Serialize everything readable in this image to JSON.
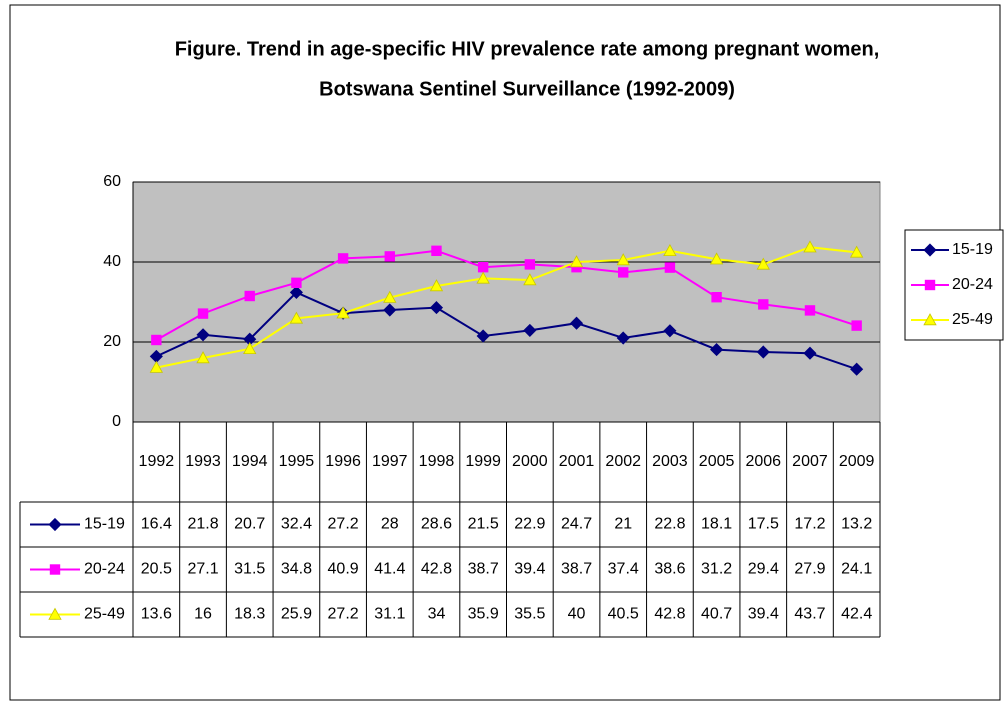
{
  "chart_data": {
    "type": "line",
    "title": [
      "Figure. Trend in age-specific HIV prevalence rate among pregnant women,",
      "Botswana Sentinel Surveillance (1992-2009)"
    ],
    "categories": [
      "1992",
      "1993",
      "1994",
      "1995",
      "1996",
      "1997",
      "1998",
      "1999",
      "2000",
      "2001",
      "2002",
      "2003",
      "2005",
      "2006",
      "2007",
      "2009"
    ],
    "series": [
      {
        "name": "15-19",
        "color": "#000080",
        "marker": "diamond",
        "values": [
          16.4,
          21.8,
          20.7,
          32.4,
          27.2,
          28,
          28.6,
          21.5,
          22.9,
          24.7,
          21,
          22.8,
          18.1,
          17.5,
          17.2,
          13.2
        ]
      },
      {
        "name": "20-24",
        "color": "#ff00ff",
        "marker": "square",
        "values": [
          20.5,
          27.1,
          31.5,
          34.8,
          40.9,
          41.4,
          42.8,
          38.7,
          39.4,
          38.7,
          37.4,
          38.6,
          31.2,
          29.4,
          27.9,
          24.1
        ]
      },
      {
        "name": "25-49",
        "color": "#ffff00",
        "marker": "triangle",
        "values": [
          13.6,
          16,
          18.3,
          25.9,
          27.2,
          31.1,
          34,
          35.9,
          35.5,
          40,
          40.5,
          42.8,
          40.7,
          39.4,
          43.7,
          42.4
        ]
      }
    ],
    "ylim": [
      0,
      60
    ],
    "yticks": [
      0,
      20,
      40,
      60
    ],
    "grid": true,
    "plot_background": "#c0c0c0",
    "legend": "right",
    "data_table": true
  }
}
